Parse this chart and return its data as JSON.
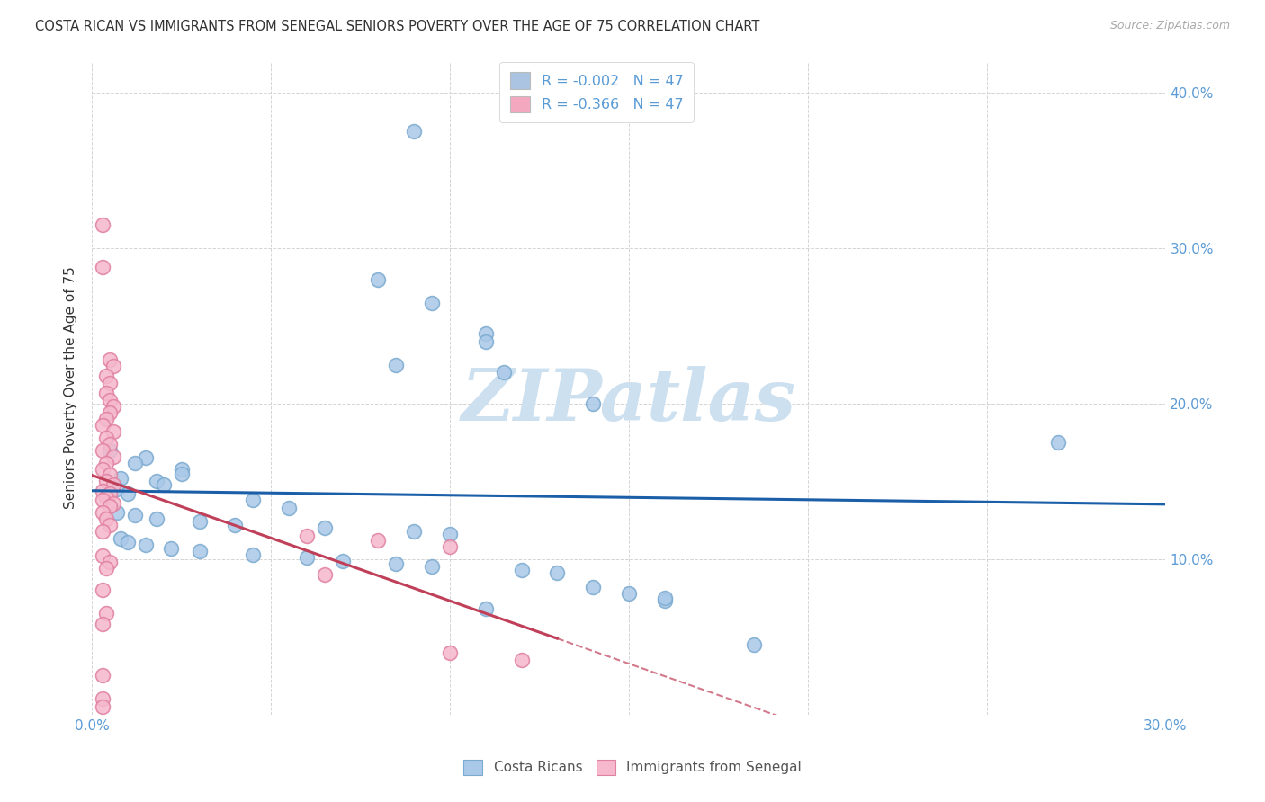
{
  "title": "COSTA RICAN VS IMMIGRANTS FROM SENEGAL SENIORS POVERTY OVER THE AGE OF 75 CORRELATION CHART",
  "source": "Source: ZipAtlas.com",
  "ylabel": "Seniors Poverty Over the Age of 75",
  "xlim": [
    0.0,
    0.3
  ],
  "ylim": [
    0.0,
    0.42
  ],
  "x_ticks": [
    0.0,
    0.05,
    0.1,
    0.15,
    0.2,
    0.25,
    0.3
  ],
  "x_tick_labels": [
    "0.0%",
    "",
    "",
    "",
    "",
    "",
    "30.0%"
  ],
  "y_ticks": [
    0.0,
    0.1,
    0.2,
    0.3,
    0.4
  ],
  "y_tick_labels_right": [
    "",
    "10.0%",
    "20.0%",
    "30.0%",
    "40.0%"
  ],
  "legend_entries": [
    {
      "color": "#aac4e2",
      "label": "R = -0.002   N = 47"
    },
    {
      "color": "#f4a8bf",
      "label": "R = -0.366   N = 47"
    }
  ],
  "legend_labels": [
    "Costa Ricans",
    "Immigrants from Senegal"
  ],
  "blue_scatter_x": [
    0.09,
    0.08,
    0.095,
    0.11,
    0.11,
    0.085,
    0.115,
    0.14,
    0.005,
    0.015,
    0.012,
    0.025,
    0.025,
    0.008,
    0.018,
    0.02,
    0.007,
    0.01,
    0.045,
    0.055,
    0.007,
    0.012,
    0.018,
    0.03,
    0.04,
    0.065,
    0.09,
    0.1,
    0.008,
    0.01,
    0.015,
    0.022,
    0.03,
    0.045,
    0.06,
    0.07,
    0.085,
    0.095,
    0.12,
    0.13,
    0.14,
    0.15,
    0.16,
    0.11,
    0.185,
    0.27,
    0.16
  ],
  "blue_scatter_y": [
    0.375,
    0.28,
    0.265,
    0.245,
    0.24,
    0.225,
    0.22,
    0.2,
    0.17,
    0.165,
    0.162,
    0.158,
    0.155,
    0.152,
    0.15,
    0.148,
    0.145,
    0.142,
    0.138,
    0.133,
    0.13,
    0.128,
    0.126,
    0.124,
    0.122,
    0.12,
    0.118,
    0.116,
    0.113,
    0.111,
    0.109,
    0.107,
    0.105,
    0.103,
    0.101,
    0.099,
    0.097,
    0.095,
    0.093,
    0.091,
    0.082,
    0.078,
    0.073,
    0.068,
    0.045,
    0.175,
    0.075
  ],
  "pink_scatter_x": [
    0.003,
    0.003,
    0.005,
    0.006,
    0.004,
    0.005,
    0.004,
    0.005,
    0.006,
    0.005,
    0.004,
    0.003,
    0.006,
    0.004,
    0.005,
    0.003,
    0.006,
    0.004,
    0.003,
    0.005,
    0.004,
    0.006,
    0.003,
    0.005,
    0.004,
    0.003,
    0.006,
    0.005,
    0.003,
    0.004,
    0.005,
    0.003,
    0.06,
    0.08,
    0.1,
    0.003,
    0.005,
    0.004,
    0.065,
    0.003,
    0.004,
    0.003,
    0.1,
    0.12,
    0.003,
    0.003,
    0.003
  ],
  "pink_scatter_y": [
    0.315,
    0.288,
    0.228,
    0.224,
    0.218,
    0.213,
    0.207,
    0.202,
    0.198,
    0.194,
    0.19,
    0.186,
    0.182,
    0.178,
    0.174,
    0.17,
    0.166,
    0.162,
    0.158,
    0.154,
    0.15,
    0.148,
    0.144,
    0.142,
    0.14,
    0.138,
    0.136,
    0.134,
    0.13,
    0.126,
    0.122,
    0.118,
    0.115,
    0.112,
    0.108,
    0.102,
    0.098,
    0.094,
    0.09,
    0.08,
    0.065,
    0.058,
    0.04,
    0.035,
    0.025,
    0.01,
    0.005
  ],
  "blue_line_color": "#1a5fa8",
  "pink_line_color": "#c0405a",
  "scatter_blue_face": "#aac8e8",
  "scatter_blue_edge": "#7aaad0",
  "scatter_pink_face": "#f5b8cc",
  "scatter_pink_edge": "#e080a0",
  "watermark_text": "ZIPatlas",
  "watermark_color": "#cde0f0",
  "grid_color": "#d0d0d0"
}
